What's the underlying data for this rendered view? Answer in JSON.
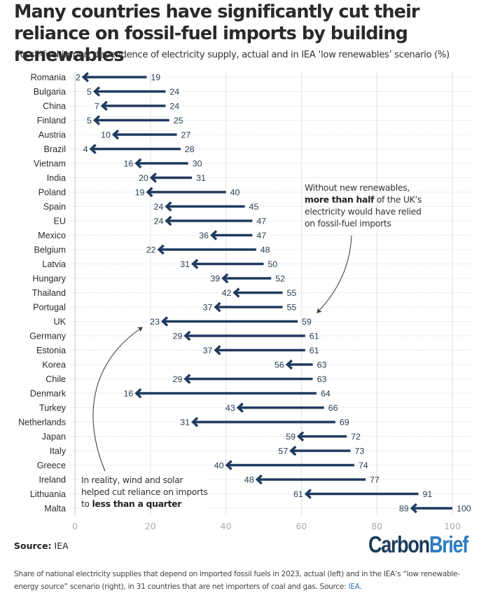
{
  "header": {
    "title": "Many countries have significantly cut their reliance on fossil-fuel imports by building renewables",
    "subtitle": "Fossil-fuel import dependence of electricity supply, actual and in IEA ‘low renewables’ scenario (%)"
  },
  "chart_data": {
    "type": "arrow-dumbbell",
    "title": "Many countries have significantly cut their reliance on fossil-fuel imports by building renewables",
    "subtitle": "Fossil-fuel import dependence of electricity supply, actual and in IEA ‘low renewables’ scenario (%)",
    "xlabel": "",
    "ylabel": "",
    "xlim": [
      0,
      100
    ],
    "xticks": [
      0,
      20,
      40,
      60,
      80,
      100
    ],
    "grid": true,
    "colors": {
      "arrow": "#1f3a5f",
      "grid": "#e6e6e6",
      "tick_label": "#aaaaaa",
      "value_label": "#2b3e55"
    },
    "series": [
      {
        "name": "Actual (2023)",
        "role": "arrow-head"
      },
      {
        "name": "IEA low renewables scenario",
        "role": "arrow-tail"
      }
    ],
    "categories": [
      "Romania",
      "Bulgaria",
      "China",
      "Finland",
      "Austria",
      "Brazil",
      "Vietnam",
      "India",
      "Poland",
      "Spain",
      "EU",
      "Mexico",
      "Belgium",
      "Latvia",
      "Hungary",
      "Thailand",
      "Portugal",
      "UK",
      "Germany",
      "Estonia",
      "Korea",
      "Chile",
      "Denmark",
      "Turkey",
      "Netherlands",
      "Japan",
      "Italy",
      "Greece",
      "Ireland",
      "Lithuania",
      "Malta"
    ],
    "actual": [
      2,
      5,
      7,
      5,
      10,
      4,
      16,
      20,
      19,
      24,
      24,
      36,
      22,
      31,
      39,
      42,
      37,
      23,
      29,
      37,
      56,
      29,
      16,
      43,
      31,
      59,
      57,
      40,
      48,
      61,
      89
    ],
    "scenario": [
      19,
      24,
      24,
      25,
      27,
      28,
      30,
      31,
      40,
      45,
      47,
      47,
      48,
      50,
      52,
      55,
      55,
      59,
      61,
      61,
      63,
      63,
      64,
      66,
      69,
      72,
      73,
      74,
      77,
      91,
      100
    ],
    "annotations": [
      {
        "target": "UK scenario (59)",
        "text_plain": "Without new renewables, ",
        "text_bold": "more than half",
        "text_rest": " of the UK’s electricity would have relied on fossil-fuel imports"
      },
      {
        "target": "UK actual (23)",
        "text_plain": "In reality, wind and solar helped cut reliance on imports to ",
        "text_bold": "less than a quarter"
      }
    ]
  },
  "notes": {
    "right": {
      "line1": "Without new renewables,",
      "line2_bold": "more than half",
      "line2_rest": " of the UK’s",
      "line3": "electricity would have relied",
      "line4": "on fossil-fuel imports"
    },
    "left": {
      "line1": "In reality, wind and solar",
      "line2": "helped cut reliance on imports",
      "line3_plain": "to ",
      "line3_bold": "less than a quarter"
    }
  },
  "footer": {
    "source_label": "Source:",
    "source_value": " IEA",
    "logo_part1": "Carbon",
    "logo_part2": "Brief",
    "caption_text": "Share of national electricity supplies that depend on imported fossil fuels in 2023, actual (left) and in the IEA’s “low renewable-energy source” scenario (right), in 31 countries that are net importers of coal and gas. Source: ",
    "caption_link": "IEA",
    "caption_end": "."
  }
}
